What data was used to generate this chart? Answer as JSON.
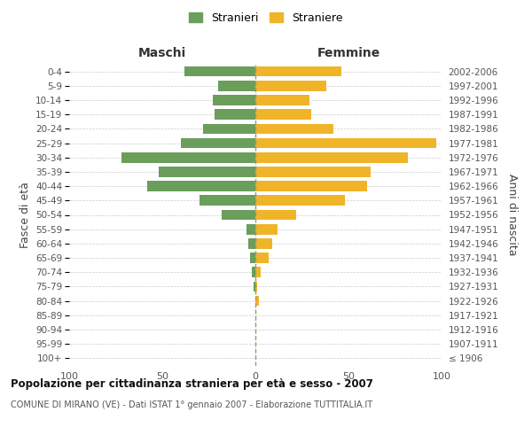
{
  "age_groups": [
    "100+",
    "95-99",
    "90-94",
    "85-89",
    "80-84",
    "75-79",
    "70-74",
    "65-69",
    "60-64",
    "55-59",
    "50-54",
    "45-49",
    "40-44",
    "35-39",
    "30-34",
    "25-29",
    "20-24",
    "15-19",
    "10-14",
    "5-9",
    "0-4"
  ],
  "birth_years": [
    "≤ 1906",
    "1907-1911",
    "1912-1916",
    "1917-1921",
    "1922-1926",
    "1927-1931",
    "1932-1936",
    "1937-1941",
    "1942-1946",
    "1947-1951",
    "1952-1956",
    "1957-1961",
    "1962-1966",
    "1967-1971",
    "1972-1976",
    "1977-1981",
    "1982-1986",
    "1987-1991",
    "1992-1996",
    "1997-2001",
    "2002-2006"
  ],
  "maschi": [
    0,
    0,
    0,
    0,
    0,
    1,
    2,
    3,
    4,
    5,
    18,
    30,
    58,
    52,
    72,
    40,
    28,
    22,
    23,
    20,
    38
  ],
  "femmine": [
    0,
    0,
    0,
    0,
    2,
    1,
    3,
    7,
    9,
    12,
    22,
    48,
    60,
    62,
    82,
    97,
    42,
    30,
    29,
    38,
    46
  ],
  "maschi_color": "#6a9e5a",
  "femmine_color": "#f0b429",
  "grid_color": "#cccccc",
  "left_label": "Maschi",
  "right_label": "Femmine",
  "y_left_label": "Fasce di età",
  "y_right_label": "Anni di nascita",
  "title": "Popolazione per cittadinanza straniera per età e sesso - 2007",
  "subtitle": "COMUNE DI MIRANO (VE) - Dati ISTAT 1° gennaio 2007 - Elaborazione TUTTITALIA.IT",
  "legend_maschi": "Stranieri",
  "legend_femmine": "Straniere",
  "xlim": 100
}
